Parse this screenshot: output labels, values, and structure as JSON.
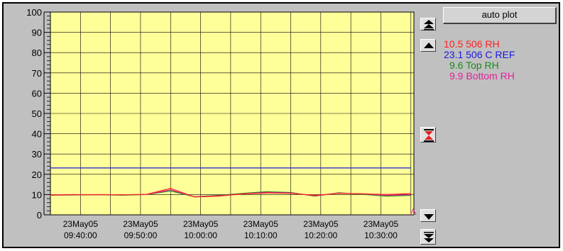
{
  "auto_plot_label": "auto plot",
  "legend": [
    {
      "text": "10.5 506 RH",
      "color": "#ff2020"
    },
    {
      "text": "23.1 506 C REF",
      "color": "#1818e0"
    },
    {
      "text": "9.6 Top RH",
      "color": "#1a8a1a"
    },
    {
      "text": "9.9 Bottom RH",
      "color": "#e0209a"
    }
  ],
  "buttons": {
    "scroll_top_icon": "double-up-arrow-icon",
    "scroll_up_icon": "up-arrow-icon",
    "zoom_icon": "hourglass-zoom-icon",
    "scroll_down_icon": "down-arrow-icon",
    "scroll_bottom_icon": "double-down-arrow-icon"
  },
  "chart_data": {
    "type": "line",
    "y_ticks": [
      "0",
      "10",
      "20",
      "30",
      "40",
      "50",
      "60",
      "70",
      "80",
      "90",
      "100"
    ],
    "ylim": [
      0,
      100
    ],
    "x_ticks": [
      {
        "date": "23May05",
        "time": "09:40:00"
      },
      {
        "date": "23May05",
        "time": "09:50:00"
      },
      {
        "date": "23May05",
        "time": "10:00:00"
      },
      {
        "date": "23May05",
        "time": "10:10:00"
      },
      {
        "date": "23May05",
        "time": "10:20:00"
      },
      {
        "date": "23May05",
        "time": "10:30:00"
      }
    ],
    "x_minutes": [
      0,
      4,
      8,
      12,
      16,
      20,
      24,
      28,
      32,
      36,
      40,
      44,
      48,
      52,
      56,
      60
    ],
    "x_start_label": "09:35",
    "grid": true,
    "background": "#ffff99",
    "series": [
      {
        "name": "506 RH",
        "color": "#ff2020",
        "values": [
          9.8,
          9.9,
          10.0,
          9.9,
          10.1,
          13.0,
          8.8,
          9.2,
          10.3,
          10.8,
          10.6,
          9.6,
          10.6,
          10.4,
          10.0,
          10.5
        ]
      },
      {
        "name": "506 C REF",
        "color": "#1818e0",
        "values": [
          23.1,
          23.1,
          23.1,
          23.1,
          23.1,
          23.1,
          23.1,
          23.1,
          23.1,
          23.1,
          23.1,
          23.1,
          23.1,
          23.1,
          23.1,
          23.1
        ]
      },
      {
        "name": "Top RH",
        "color": "#1a8a1a",
        "values": [
          9.7,
          9.8,
          9.9,
          9.7,
          10.0,
          11.8,
          8.9,
          9.6,
          10.6,
          11.4,
          11.0,
          9.2,
          10.9,
          10.1,
          9.2,
          9.6
        ]
      },
      {
        "name": "Bottom RH",
        "color": "#e0209a",
        "values": [
          9.9,
          10.0,
          9.9,
          9.9,
          10.0,
          12.3,
          8.9,
          9.4,
          10.4,
          11.1,
          10.8,
          9.4,
          10.7,
          10.3,
          9.6,
          9.9
        ]
      }
    ]
  }
}
